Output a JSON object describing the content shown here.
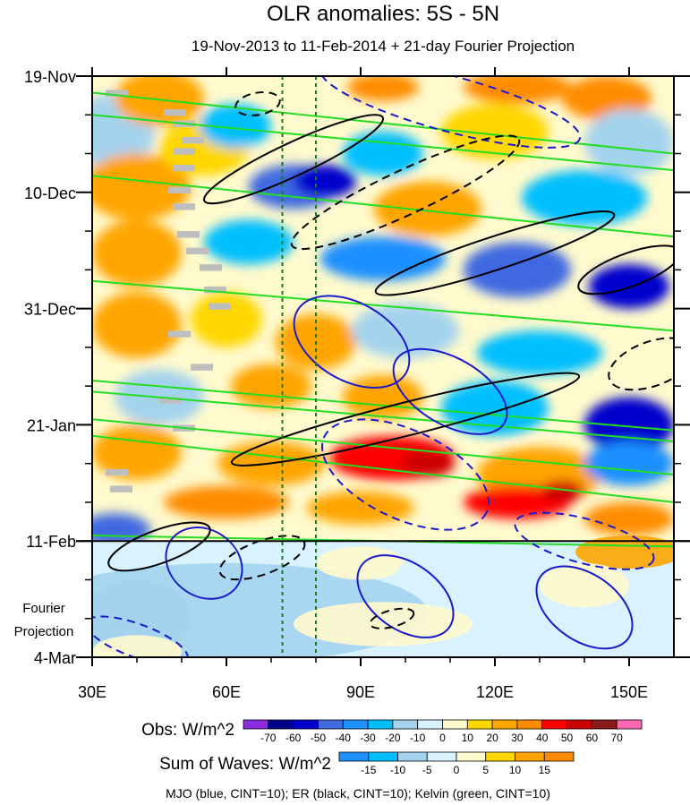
{
  "chart_data": {
    "type": "heatmap",
    "title": "OLR anomalies: 5S - 5N",
    "subtitle": "19-Nov-2013 to 11-Feb-2014 + 21-day Fourier Projection",
    "x_range": [
      30,
      160
    ],
    "x_unit": "degrees east",
    "x_ticks": [
      {
        "value": 30,
        "label": "30E"
      },
      {
        "value": 60,
        "label": "60E"
      },
      {
        "value": 90,
        "label": "90E"
      },
      {
        "value": 120,
        "label": "120E"
      },
      {
        "value": 150,
        "label": "150E"
      }
    ],
    "y_range_days": [
      0,
      105
    ],
    "y_ticks": [
      {
        "day": 0,
        "label": "19-Nov"
      },
      {
        "day": 21,
        "label": "10-Dec"
      },
      {
        "day": 42,
        "label": "31-Dec"
      },
      {
        "day": 63,
        "label": "21-Jan"
      },
      {
        "day": 84,
        "label": "11-Feb"
      },
      {
        "day": 105,
        "label": "4-Mar"
      }
    ],
    "projection_start_day": 84,
    "projection_label": [
      "Fourier",
      "Projection"
    ],
    "reference_lines_lon": [
      72.5,
      80
    ],
    "obs_colorbar": {
      "label": "Obs: W/m^2",
      "levels": [
        "-70",
        "-60",
        "-50",
        "-40",
        "-30",
        "-20",
        "-10",
        "0",
        "10",
        "20",
        "30",
        "40",
        "50",
        "60",
        "70"
      ],
      "colors": [
        "#8a2be2",
        "#00008b",
        "#0000cd",
        "#4169e1",
        "#1e90ff",
        "#00bfff",
        "#a4d3ee",
        "#d8f3ff",
        "#fffacd",
        "#ffd700",
        "#ffa500",
        "#ff8c00",
        "#ff0000",
        "#cd0000",
        "#8b1a1a",
        "#ff69b4"
      ]
    },
    "waves_colorbar": {
      "label": "Sum of Waves: W/m^2",
      "levels": [
        "-15",
        "-10",
        "-5",
        "0",
        "5",
        "10",
        "15"
      ],
      "colors": [
        "#1e90ff",
        "#00bfff",
        "#a4d3ee",
        "#d8f3ff",
        "#fffacd",
        "#ffd700",
        "#ffa500",
        "#ff8c00"
      ]
    },
    "footer": "MJO (blue, CINT=10); ER (black, CINT=10); Kelvin (green, CINT=10)",
    "field": [
      {
        "lon": 35,
        "day": 10,
        "value": -15,
        "rx": 9,
        "ry": 7
      },
      {
        "lon": 45,
        "day": 4,
        "value": 25,
        "rx": 10,
        "ry": 5
      },
      {
        "lon": 40,
        "day": 20,
        "value": 20,
        "rx": 12,
        "ry": 6
      },
      {
        "lon": 55,
        "day": 13,
        "value": 10,
        "rx": 10,
        "ry": 5
      },
      {
        "lon": 62,
        "day": 9,
        "value": -30,
        "rx": 8,
        "ry": 4
      },
      {
        "lon": 75,
        "day": 20,
        "value": -45,
        "rx": 10,
        "ry": 4
      },
      {
        "lon": 82,
        "day": 19,
        "value": -60,
        "rx": 7,
        "ry": 3
      },
      {
        "lon": 95,
        "day": 14,
        "value": -25,
        "rx": 9,
        "ry": 4
      },
      {
        "lon": 95,
        "day": 2,
        "value": 35,
        "rx": 8,
        "ry": 2.5
      },
      {
        "lon": 125,
        "day": 2,
        "value": 30,
        "rx": 12,
        "ry": 3
      },
      {
        "lon": 145,
        "day": 4,
        "value": 30,
        "rx": 10,
        "ry": 4
      },
      {
        "lon": 120,
        "day": 10,
        "value": 15,
        "rx": 12,
        "ry": 5
      },
      {
        "lon": 150,
        "day": 12,
        "value": -20,
        "rx": 10,
        "ry": 6
      },
      {
        "lon": 105,
        "day": 24,
        "value": 20,
        "rx": 12,
        "ry": 5
      },
      {
        "lon": 140,
        "day": 22,
        "value": -25,
        "rx": 14,
        "ry": 5
      },
      {
        "lon": 40,
        "day": 32,
        "value": 20,
        "rx": 10,
        "ry": 6
      },
      {
        "lon": 65,
        "day": 30,
        "value": -25,
        "rx": 10,
        "ry": 4
      },
      {
        "lon": 95,
        "day": 33,
        "value": -40,
        "rx": 14,
        "ry": 4
      },
      {
        "lon": 125,
        "day": 35,
        "value": -45,
        "rx": 12,
        "ry": 5
      },
      {
        "lon": 150,
        "day": 38,
        "value": -55,
        "rx": 9,
        "ry": 4
      },
      {
        "lon": 40,
        "day": 45,
        "value": 25,
        "rx": 10,
        "ry": 6
      },
      {
        "lon": 60,
        "day": 44,
        "value": 15,
        "rx": 8,
        "ry": 5
      },
      {
        "lon": 80,
        "day": 48,
        "value": 25,
        "rx": 9,
        "ry": 5
      },
      {
        "lon": 100,
        "day": 46,
        "value": -20,
        "rx": 12,
        "ry": 5
      },
      {
        "lon": 130,
        "day": 50,
        "value": -30,
        "rx": 14,
        "ry": 4
      },
      {
        "lon": 45,
        "day": 58,
        "value": -20,
        "rx": 10,
        "ry": 5
      },
      {
        "lon": 70,
        "day": 56,
        "value": 20,
        "rx": 9,
        "ry": 4
      },
      {
        "lon": 95,
        "day": 58,
        "value": 25,
        "rx": 9,
        "ry": 4
      },
      {
        "lon": 120,
        "day": 60,
        "value": -25,
        "rx": 12,
        "ry": 5
      },
      {
        "lon": 150,
        "day": 63,
        "value": -60,
        "rx": 10,
        "ry": 5
      },
      {
        "lon": 40,
        "day": 68,
        "value": 20,
        "rx": 10,
        "ry": 5
      },
      {
        "lon": 70,
        "day": 70,
        "value": 25,
        "rx": 12,
        "ry": 4
      },
      {
        "lon": 97,
        "day": 69,
        "value": 45,
        "rx": 14,
        "ry": 4
      },
      {
        "lon": 105,
        "day": 70,
        "value": 55,
        "rx": 6,
        "ry": 2.5
      },
      {
        "lon": 130,
        "day": 72,
        "value": 20,
        "rx": 14,
        "ry": 5
      },
      {
        "lon": 150,
        "day": 70,
        "value": -35,
        "rx": 10,
        "ry": 4
      },
      {
        "lon": 60,
        "day": 77,
        "value": 30,
        "rx": 14,
        "ry": 3
      },
      {
        "lon": 90,
        "day": 78,
        "value": 20,
        "rx": 12,
        "ry": 3
      },
      {
        "lon": 125,
        "day": 77,
        "value": 40,
        "rx": 12,
        "ry": 3
      },
      {
        "lon": 135,
        "day": 75,
        "value": 55,
        "rx": 5,
        "ry": 2
      },
      {
        "lon": 35,
        "day": 82,
        "value": -50,
        "rx": 8,
        "ry": 3
      },
      {
        "lon": 150,
        "day": 80,
        "value": 30,
        "rx": 10,
        "ry": 3
      }
    ],
    "projection_field": [
      {
        "lon": 60,
        "day": 97,
        "value": -6,
        "rx": 45,
        "ry": 9
      },
      {
        "lon": 40,
        "day": 98,
        "value": -10,
        "rx": 12,
        "ry": 7
      },
      {
        "lon": 90,
        "day": 88,
        "value": 4,
        "rx": 10,
        "ry": 3
      },
      {
        "lon": 110,
        "day": 90,
        "value": -5,
        "rx": 12,
        "ry": 4
      },
      {
        "lon": 150,
        "day": 86,
        "value": 10,
        "rx": 12,
        "ry": 3
      },
      {
        "lon": 140,
        "day": 92,
        "value": 4,
        "rx": 10,
        "ry": 4
      },
      {
        "lon": 95,
        "day": 99,
        "value": 3,
        "rx": 20,
        "ry": 4
      },
      {
        "lon": 40,
        "day": 104,
        "value": 3,
        "rx": 10,
        "ry": 3
      }
    ],
    "missing_data": [
      {
        "lon_start": 33,
        "day": 2.5
      },
      {
        "lon_start": 46,
        "day": 6
      },
      {
        "lon_start": 48,
        "day": 8
      },
      {
        "lon_start": 50,
        "day": 11
      },
      {
        "lon_start": 48,
        "day": 13
      },
      {
        "lon_start": 48,
        "day": 16
      },
      {
        "lon_start": 47,
        "day": 20
      },
      {
        "lon_start": 48,
        "day": 23
      },
      {
        "lon_start": 49,
        "day": 28
      },
      {
        "lon_start": 51,
        "day": 31
      },
      {
        "lon_start": 54,
        "day": 34
      },
      {
        "lon_start": 55,
        "day": 38
      },
      {
        "lon_start": 56,
        "day": 41
      },
      {
        "lon_start": 47,
        "day": 46
      },
      {
        "lon_start": 52,
        "day": 52
      },
      {
        "lon_start": 45,
        "day": 58
      },
      {
        "lon_start": 48,
        "day": 63
      },
      {
        "lon_start": 33,
        "day": 71
      },
      {
        "lon_start": 34,
        "day": 74
      }
    ],
    "kelvin_lines": [
      {
        "lon1": 30,
        "day1": 3,
        "lon2": 160,
        "day2": 14
      },
      {
        "lon1": 30,
        "day1": 7,
        "lon2": 160,
        "day2": 17
      },
      {
        "lon1": 30,
        "day1": 18,
        "lon2": 160,
        "day2": 29
      },
      {
        "lon1": 30,
        "day1": 37,
        "lon2": 160,
        "day2": 46
      },
      {
        "lon1": 30,
        "day1": 55,
        "lon2": 160,
        "day2": 64
      },
      {
        "lon1": 30,
        "day1": 57,
        "lon2": 160,
        "day2": 66
      },
      {
        "lon1": 30,
        "day1": 62,
        "lon2": 160,
        "day2": 72
      },
      {
        "lon1": 30,
        "day1": 65,
        "lon2": 160,
        "day2": 77
      },
      {
        "lon1": 30,
        "day1": 83,
        "lon2": 160,
        "day2": 85
      }
    ],
    "mjo_contours": [
      {
        "lon": 55,
        "day": 88,
        "rx": 9,
        "ry": 6,
        "rot": 35,
        "dash": false
      },
      {
        "lon": 88,
        "day": 48,
        "rx": 14,
        "ry": 7,
        "rot": 30,
        "dash": false
      },
      {
        "lon": 110,
        "day": 57,
        "rx": 14,
        "ry": 6,
        "rot": 30,
        "dash": false
      },
      {
        "lon": 100,
        "day": 94,
        "rx": 12,
        "ry": 6,
        "rot": 35,
        "dash": false
      },
      {
        "lon": 140,
        "day": 96,
        "rx": 12,
        "ry": 6,
        "rot": 35,
        "dash": false
      },
      {
        "lon": 110,
        "day": 5,
        "rx": 30,
        "ry": 5,
        "rot": 15,
        "dash": true
      },
      {
        "lon": 100,
        "day": 72,
        "rx": 20,
        "ry": 8,
        "rot": 25,
        "dash": true
      },
      {
        "lon": 140,
        "day": 84,
        "rx": 16,
        "ry": 4,
        "rot": 15,
        "dash": true
      },
      {
        "lon": 40,
        "day": 102,
        "rx": 12,
        "ry": 3,
        "rot": 20,
        "dash": true
      }
    ],
    "er_contours": [
      {
        "lon": 75,
        "day": 15,
        "rx": 22,
        "ry": 3,
        "rot": -25,
        "dash": false
      },
      {
        "lon": 120,
        "day": 32,
        "rx": 28,
        "ry": 3,
        "rot": -18,
        "dash": false
      },
      {
        "lon": 100,
        "day": 62,
        "rx": 40,
        "ry": 3,
        "rot": -14,
        "dash": false
      },
      {
        "lon": 150,
        "day": 35,
        "rx": 12,
        "ry": 3,
        "rot": -20,
        "dash": false
      },
      {
        "lon": 45,
        "day": 85,
        "rx": 12,
        "ry": 3,
        "rot": -20,
        "dash": false
      },
      {
        "lon": 100,
        "day": 21,
        "rx": 28,
        "ry": 4,
        "rot": -25,
        "dash": true
      },
      {
        "lon": 67,
        "day": 5,
        "rx": 5,
        "ry": 2,
        "rot": -10,
        "dash": true
      },
      {
        "lon": 155,
        "day": 52,
        "rx": 10,
        "ry": 4,
        "rot": -20,
        "dash": true
      },
      {
        "lon": 68,
        "day": 87,
        "rx": 10,
        "ry": 3,
        "rot": -20,
        "dash": true
      },
      {
        "lon": 97,
        "day": 98,
        "rx": 5,
        "ry": 1.5,
        "rot": -15,
        "dash": true
      }
    ]
  }
}
